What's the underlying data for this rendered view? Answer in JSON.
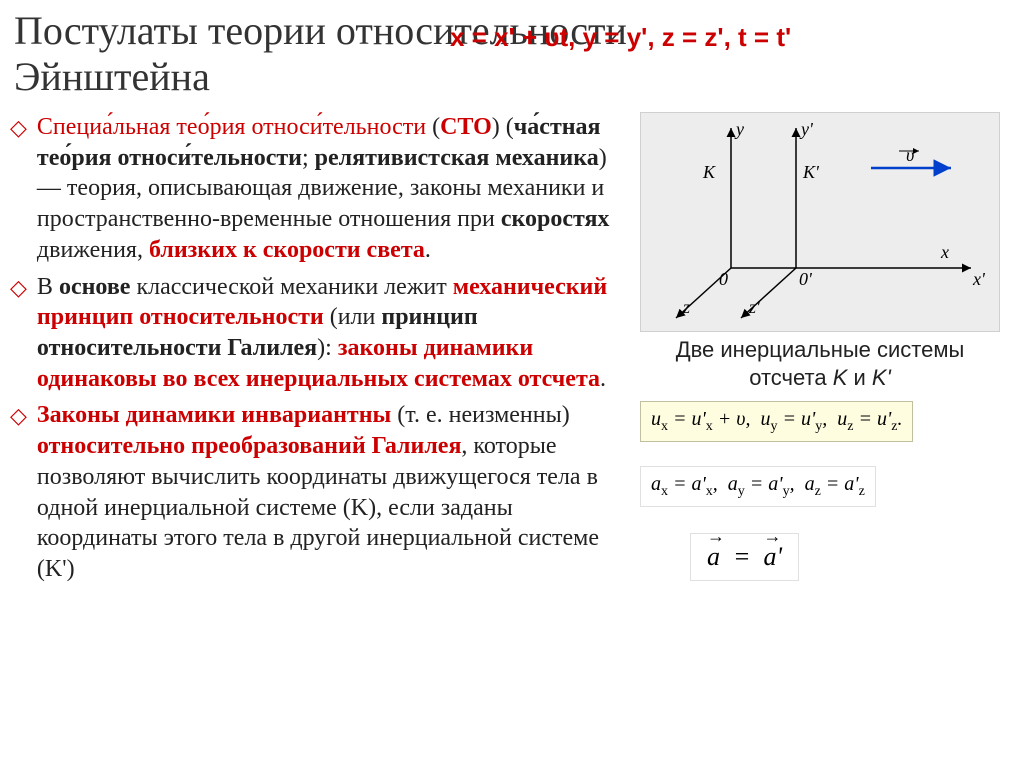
{
  "title": "Постулаты теории относительности Эйнштейна",
  "top_formula": "x = x' + υt, y = y', z = z', t = t'",
  "bullets": [
    {
      "parts": [
        {
          "text": "Специа́льная тео́рия относи́тельности",
          "red": true
        },
        {
          "text": " ("
        },
        {
          "text": "СТО",
          "red": true,
          "bold": true
        },
        {
          "text": ") ("
        },
        {
          "text": "ча́стная тео́рия относи́тельности",
          "bold": true
        },
        {
          "text": "; "
        },
        {
          "text": "релятивистская механика",
          "bold": true
        },
        {
          "text": ") — теория, описывающая движение, законы механики и пространственно-временные отношения при "
        },
        {
          "text": "скоростях",
          "bold": true
        },
        {
          "text": " движения, "
        },
        {
          "text": "близких к скорости света",
          "red": true,
          "bold": true
        },
        {
          "text": "."
        }
      ]
    },
    {
      "parts": [
        {
          "text": "В "
        },
        {
          "text": "основе",
          "bold": true
        },
        {
          "text": " классической механики лежит "
        },
        {
          "text": "механический принцип относительности",
          "red": true,
          "bold": true
        },
        {
          "text": " (или "
        },
        {
          "text": "принцип относительности Галилея",
          "bold": true
        },
        {
          "text": "): "
        },
        {
          "text": "законы динамики одинаковы во всех инерциальных системах отсчета",
          "red": true,
          "bold": true
        },
        {
          "text": "."
        }
      ]
    },
    {
      "parts": [
        {
          "text": "Законы динамики инвариантны",
          "red": true,
          "bold": true
        },
        {
          "text": " (т. е. неизменны) "
        },
        {
          "text": "относительно преобразований Галилея",
          "red": true,
          "bold": true
        },
        {
          "text": ", которые позволяют вычислить координаты движущегося тела в одной инерциальной системе (K), если заданы координаты этого тела в другой инерциальной системе (K')"
        }
      ]
    }
  ],
  "diagram": {
    "caption_line1": "Две инерциальные системы",
    "caption_line2": "отсчета K и K'",
    "labels": {
      "K": "K",
      "K2": "K'",
      "y": "y",
      "y2": "y'",
      "x": "x",
      "x2": "x'",
      "z": "z",
      "z2": "z'",
      "O": "0",
      "O2": "0'",
      "v": "υ"
    },
    "arrow_color": "#0040cc"
  },
  "formulas": {
    "velocity": "u<sub>x</sub> = u'<sub>x</sub> + υ,&nbsp;&nbsp;u<sub>y</sub> = u'<sub>y</sub>,&nbsp;&nbsp;u<sub>z</sub> = u'<sub>z</sub>.",
    "accel": "a<sub>x</sub> = a'<sub>x</sub>,&nbsp;&nbsp;a<sub>y</sub> = a'<sub>y</sub>,&nbsp;&nbsp;a<sub>z</sub> = a'<sub>z</sub>",
    "vec": "a&nbsp;&nbsp;=&nbsp;&nbsp;a'"
  },
  "colors": {
    "accent_red": "#cc0000",
    "text": "#222222",
    "formula_bg": "#fffde0",
    "diagram_bg": "#ededed"
  }
}
